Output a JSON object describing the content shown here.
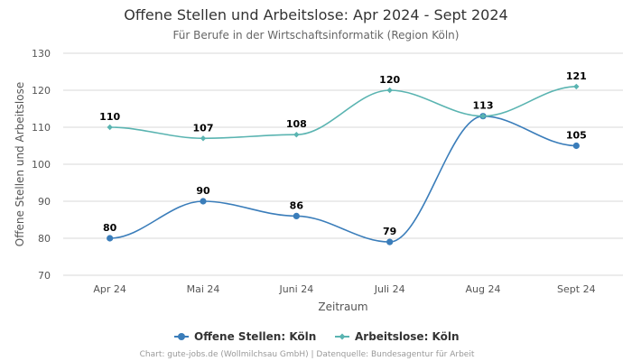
{
  "chart_data": {
    "type": "line",
    "title": "Offene Stellen und Arbeitslose: Apr 2024 - Sept 2024",
    "subtitle": "Für Berufe in der Wirtschaftsinformatik (Region Köln)",
    "xlabel": "Zeitraum",
    "ylabel": "Offene Stellen und Arbeitslose",
    "categories": [
      "Apr 24",
      "Mai 24",
      "Juni 24",
      "Juli 24",
      "Aug 24",
      "Sept 24"
    ],
    "ylim": [
      70,
      130
    ],
    "yticks": [
      70,
      80,
      90,
      100,
      110,
      120,
      130
    ],
    "grid": true,
    "legend_position": "bottom",
    "series": [
      {
        "name": "Offene Stellen: Köln",
        "color": "#3a7dba",
        "marker": "circle",
        "values": [
          80,
          90,
          86,
          79,
          113,
          105
        ]
      },
      {
        "name": "Arbeitslose: Köln",
        "color": "#5ab4b1",
        "marker": "diamond",
        "values": [
          110,
          107,
          108,
          120,
          113,
          121
        ]
      }
    ]
  },
  "credit": "Chart: gute-jobs.de (Wollmilchsau GmbH) | Datenquelle: Bundesagentur für Arbeit"
}
